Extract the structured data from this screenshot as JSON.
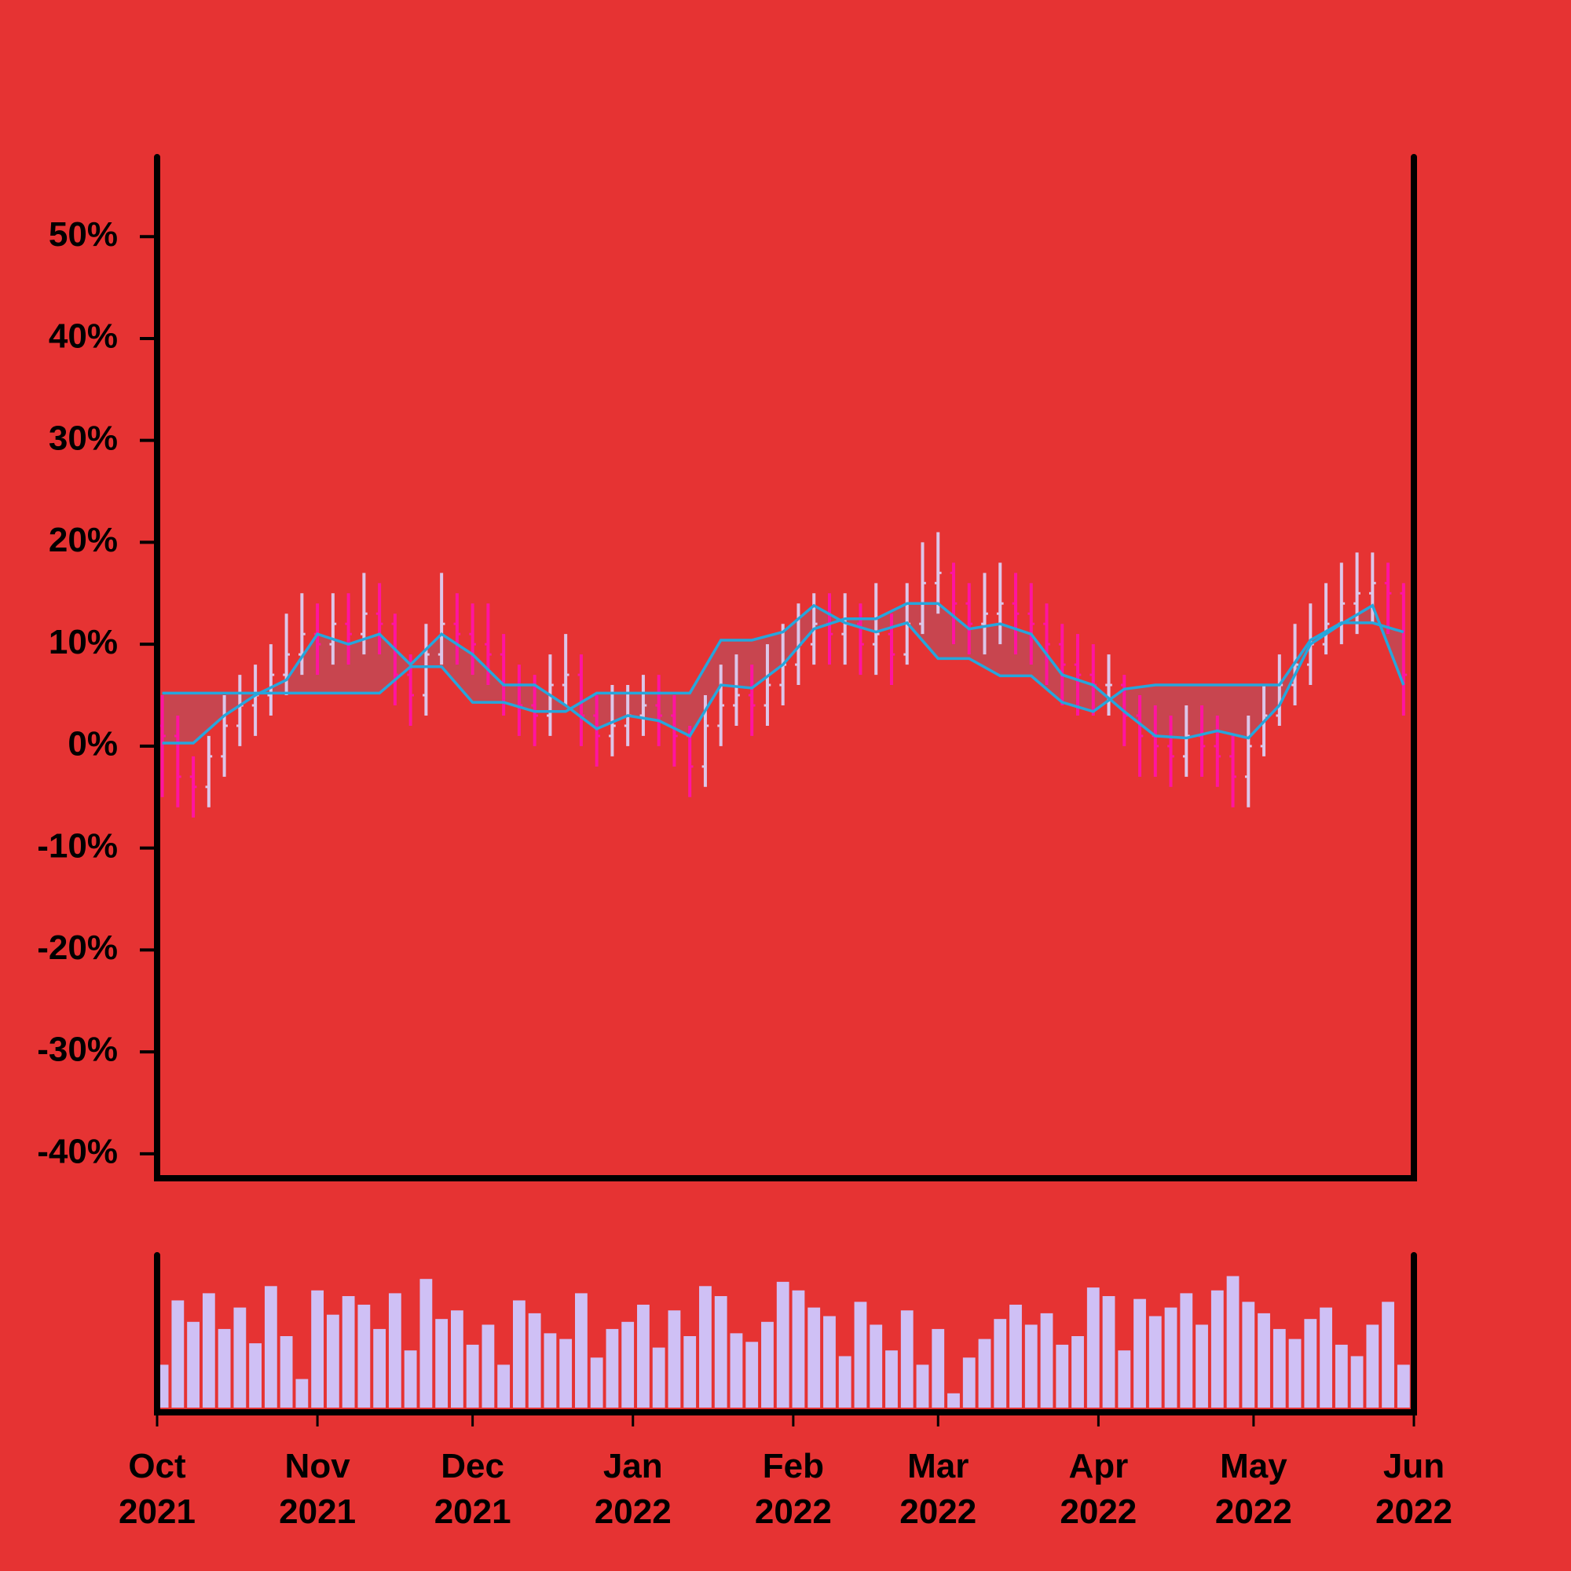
{
  "chart_data": [
    {
      "type": "ohlc",
      "x": [
        1,
        4,
        7,
        10,
        13,
        16,
        19,
        22,
        25,
        28,
        31,
        34,
        37,
        40,
        43,
        46,
        49,
        52,
        55,
        58,
        61,
        64,
        67,
        70,
        73,
        76,
        79,
        82,
        85,
        88,
        91,
        94,
        97,
        100,
        103,
        106,
        109,
        112,
        115,
        118,
        121,
        124,
        127,
        130,
        133,
        136,
        139,
        142,
        145,
        148,
        151,
        154,
        157,
        160,
        163,
        166,
        169,
        172,
        175,
        178,
        181,
        184,
        187,
        190,
        193,
        196,
        199,
        202,
        205,
        208,
        211,
        214,
        217,
        220,
        223,
        226,
        229,
        232,
        235,
        238,
        241
      ],
      "open": [
        2,
        1,
        -3,
        -4,
        -1,
        2,
        4,
        5,
        7,
        9,
        11,
        10,
        12,
        11,
        13,
        12,
        7,
        5,
        9,
        12,
        11,
        10,
        9,
        6,
        4,
        3,
        6,
        7,
        3,
        1,
        2,
        3,
        4,
        3,
        1,
        -2,
        2,
        4,
        5,
        4,
        6,
        8,
        10,
        12,
        11,
        12,
        10,
        11,
        9,
        12,
        16,
        17,
        14,
        12,
        13,
        14,
        13,
        12,
        10,
        8,
        7,
        6,
        6,
        3,
        1,
        0,
        -1,
        1,
        0,
        -1,
        -3,
        0,
        3,
        6,
        8,
        10,
        12,
        14,
        15,
        16,
        15
      ],
      "high": [
        5,
        3,
        -1,
        1,
        5,
        7,
        8,
        10,
        13,
        15,
        14,
        15,
        15,
        17,
        16,
        13,
        9,
        12,
        17,
        15,
        14,
        14,
        11,
        8,
        7,
        9,
        11,
        9,
        5,
        6,
        6,
        7,
        7,
        5,
        2,
        5,
        8,
        9,
        8,
        10,
        12,
        14,
        15,
        15,
        15,
        14,
        16,
        13,
        16,
        20,
        21,
        18,
        16,
        17,
        18,
        17,
        16,
        14,
        12,
        11,
        10,
        9,
        7,
        5,
        4,
        3,
        4,
        4,
        3,
        1,
        3,
        6,
        9,
        12,
        14,
        16,
        18,
        19,
        19,
        18,
        16
      ],
      "low": [
        -5,
        -6,
        -7,
        -6,
        -3,
        0,
        1,
        3,
        5,
        7,
        7,
        8,
        8,
        9,
        9,
        4,
        2,
        3,
        8,
        8,
        7,
        6,
        3,
        1,
        0,
        1,
        4,
        0,
        -2,
        -1,
        0,
        1,
        0,
        -2,
        -5,
        -4,
        0,
        2,
        1,
        2,
        4,
        6,
        8,
        8,
        8,
        7,
        7,
        6,
        8,
        11,
        13,
        10,
        9,
        9,
        10,
        9,
        8,
        6,
        4,
        3,
        3,
        3,
        0,
        -3,
        -3,
        -4,
        -3,
        -3,
        -4,
        -6,
        -6,
        -1,
        2,
        4,
        6,
        9,
        10,
        11,
        12,
        11,
        3
      ],
      "close": [
        1,
        -3,
        -4,
        -1,
        2,
        4,
        5,
        7,
        9,
        11,
        10,
        12,
        11,
        13,
        12,
        7,
        5,
        9,
        12,
        11,
        10,
        9,
        6,
        4,
        3,
        6,
        7,
        3,
        1,
        2,
        3,
        4,
        3,
        1,
        -2,
        2,
        4,
        5,
        4,
        6,
        8,
        10,
        12,
        11,
        12,
        10,
        11,
        9,
        12,
        16,
        17,
        14,
        12,
        13,
        14,
        13,
        12,
        10,
        8,
        7,
        6,
        6,
        3,
        1,
        0,
        -1,
        1,
        0,
        -1,
        -3,
        0,
        3,
        6,
        8,
        10,
        12,
        14,
        15,
        16,
        15,
        7
      ],
      "up_color": "#dcc6e8",
      "down_color": "#ff14a0",
      "lines": [
        {
          "color": "#26a6dc",
          "x": [
            1,
            7,
            13,
            19,
            25,
            31,
            37,
            43,
            49,
            55,
            61,
            67,
            73,
            79,
            85,
            91,
            97,
            103,
            109,
            115,
            121,
            127,
            133,
            139,
            145,
            151,
            157,
            163,
            169,
            175,
            181,
            187,
            193,
            199,
            205,
            211,
            217,
            223,
            229,
            235,
            241
          ],
          "values": [
            0.3,
            0.3,
            3,
            5,
            6.5,
            11,
            10,
            11,
            8,
            11,
            9,
            6,
            6,
            4,
            1.7,
            3,
            2.5,
            1,
            6,
            5.7,
            8,
            11.5,
            12.5,
            12.5,
            14,
            14,
            11.5,
            12,
            11,
            7,
            6,
            3.4,
            1,
            0.8,
            1.5,
            0.8,
            4,
            10,
            12,
            13.8,
            6
          ]
        },
        {
          "color": "#26a6dc",
          "x": [
            1,
            7,
            13,
            19,
            25,
            31,
            37,
            43,
            49,
            55,
            61,
            67,
            73,
            79,
            85,
            91,
            97,
            103,
            109,
            115,
            121,
            127,
            133,
            139,
            145,
            151,
            157,
            163,
            169,
            175,
            181,
            187,
            193,
            199,
            205,
            211,
            217,
            223,
            229,
            235,
            241
          ],
          "values": [
            5.2,
            5.2,
            5.2,
            5.2,
            5.2,
            5.2,
            5.2,
            5.2,
            7.8,
            7.8,
            4.3,
            4.3,
            3.4,
            3.4,
            5.2,
            5.2,
            5.2,
            5.2,
            10.4,
            10.4,
            11.2,
            13.8,
            12.1,
            11.2,
            12.1,
            8.6,
            8.6,
            6.9,
            6.9,
            4.3,
            3.4,
            5.6,
            6,
            6,
            6,
            6,
            6,
            10.4,
            12.1,
            12.1,
            11.2
          ]
        }
      ],
      "cloud_color": "#a35a72",
      "xlim": [
        0,
        243
      ],
      "ylim": [
        -42.4,
        57.8
      ],
      "yticks": [
        {
          "value": 50,
          "label": "50%"
        },
        {
          "value": 40,
          "label": "40%"
        },
        {
          "value": 30,
          "label": "30%"
        },
        {
          "value": 20,
          "label": "20%"
        },
        {
          "value": 10,
          "label": "10%"
        },
        {
          "value": 0,
          "label": "0%"
        },
        {
          "value": -10,
          "label": "-10%"
        },
        {
          "value": -20,
          "label": "-20%"
        },
        {
          "value": -30,
          "label": "-30%"
        },
        {
          "value": -40,
          "label": "-40%"
        }
      ]
    },
    {
      "type": "bar",
      "x": [
        1,
        4,
        7,
        10,
        13,
        16,
        19,
        22,
        25,
        28,
        31,
        34,
        37,
        40,
        43,
        46,
        49,
        52,
        55,
        58,
        61,
        64,
        67,
        70,
        73,
        76,
        79,
        82,
        85,
        88,
        91,
        94,
        97,
        100,
        103,
        106,
        109,
        112,
        115,
        118,
        121,
        124,
        127,
        130,
        133,
        136,
        139,
        142,
        145,
        148,
        151,
        154,
        157,
        160,
        163,
        166,
        169,
        172,
        175,
        178,
        181,
        184,
        187,
        190,
        193,
        196,
        199,
        202,
        205,
        208,
        211,
        214,
        217,
        220,
        223,
        226,
        229,
        232,
        235,
        238,
        241
      ],
      "values": [
        30,
        75,
        60,
        80,
        55,
        70,
        45,
        85,
        50,
        20,
        82,
        65,
        78,
        72,
        55,
        80,
        40,
        90,
        62,
        68,
        44,
        58,
        30,
        75,
        66,
        52,
        48,
        80,
        35,
        55,
        60,
        72,
        42,
        68,
        50,
        85,
        78,
        52,
        46,
        60,
        88,
        82,
        70,
        64,
        36,
        74,
        58,
        40,
        68,
        30,
        55,
        10,
        35,
        48,
        62,
        72,
        58,
        66,
        44,
        50,
        84,
        78,
        40,
        76,
        64,
        70,
        80,
        58,
        82,
        92,
        74,
        66,
        55,
        48,
        62,
        70,
        44,
        36,
        58,
        74,
        30
      ],
      "color": "#cfc0f5",
      "xlim": [
        0,
        243
      ],
      "ylim": [
        0,
        100
      ],
      "xticks": [
        {
          "value": 0,
          "label": "Oct 2021"
        },
        {
          "value": 31,
          "label": "Nov 2021"
        },
        {
          "value": 61,
          "label": "Dec 2021"
        },
        {
          "value": 92,
          "label": "Jan 2022"
        },
        {
          "value": 123,
          "label": "Feb 2022"
        },
        {
          "value": 151,
          "label": "Mar 2022"
        },
        {
          "value": 182,
          "label": "Apr 2022"
        },
        {
          "value": 212,
          "label": "May 2022"
        },
        {
          "value": 243,
          "label": "Jun 2022"
        }
      ]
    }
  ]
}
